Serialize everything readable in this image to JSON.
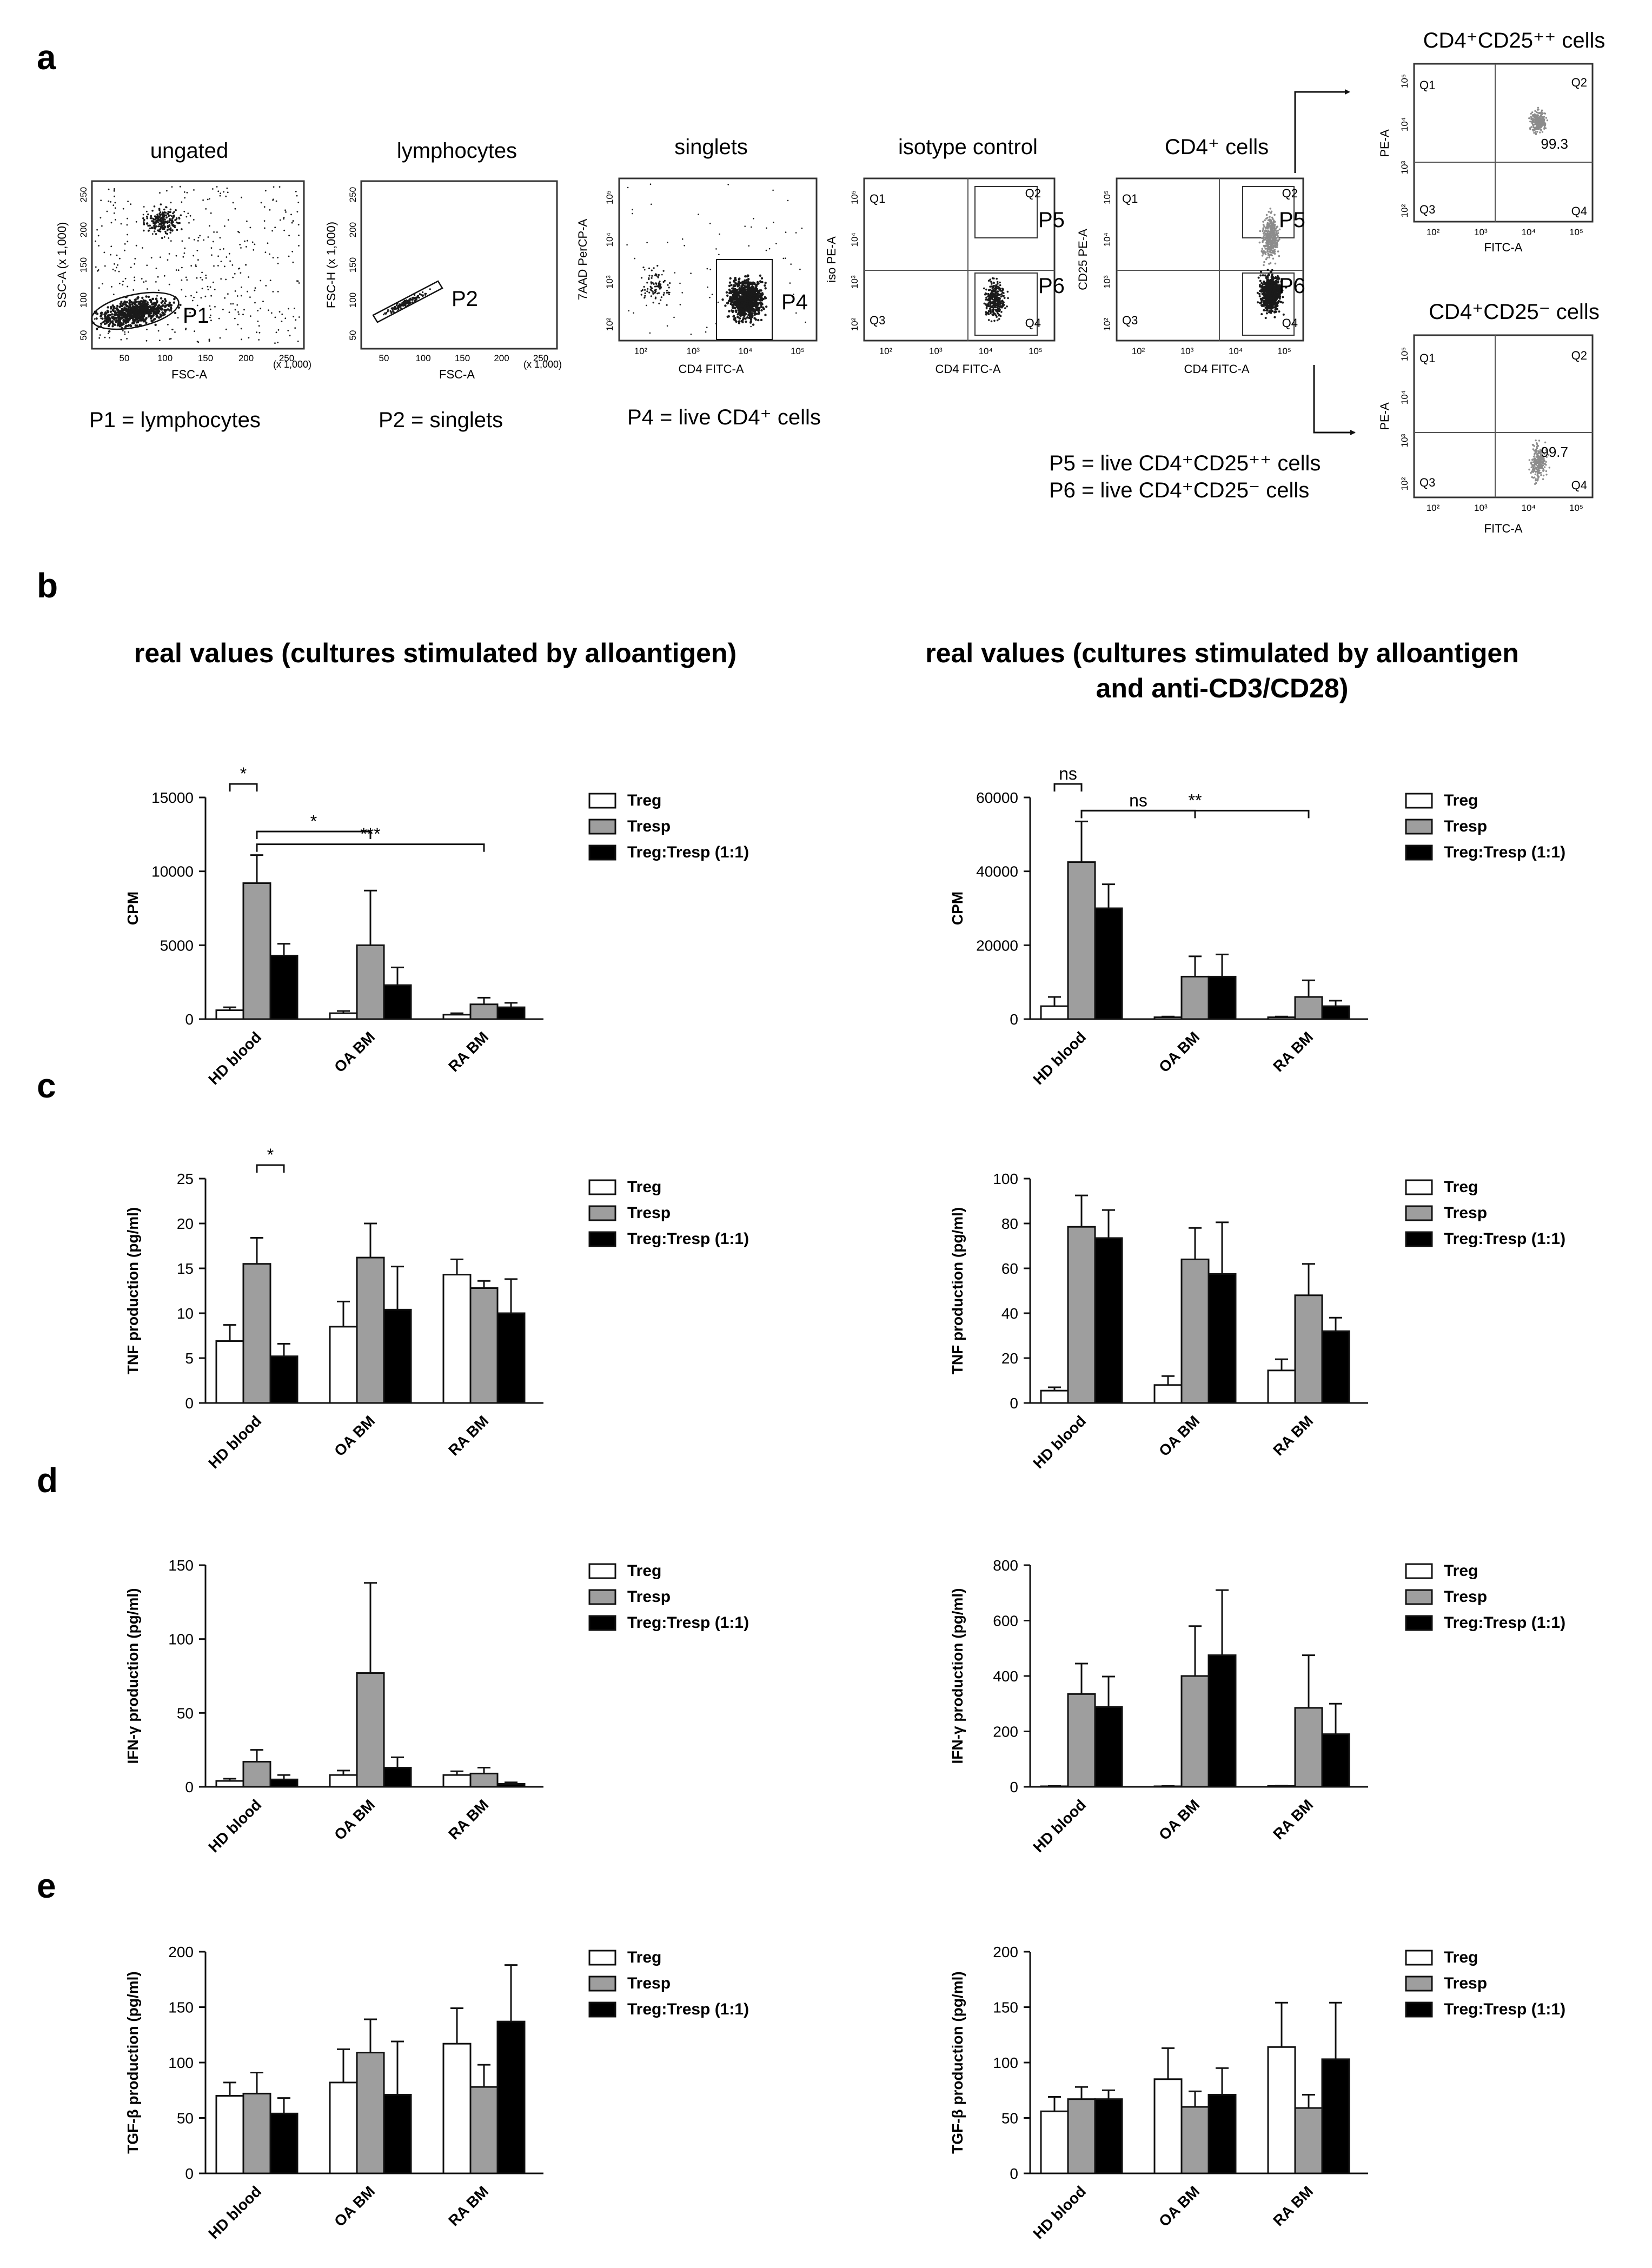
{
  "panel_letters": {
    "a": "a",
    "b": "b",
    "c": "c",
    "d": "d",
    "e": "e"
  },
  "flow": {
    "plot_titles": [
      "ungated",
      "lymphocytes",
      "singlets",
      "isotype control",
      "CD4⁺ cells"
    ],
    "right_titles": {
      "top": "CD4⁺CD25⁺⁺ cells",
      "bottom": "CD4⁺CD25⁻ cells"
    },
    "xlabels": [
      "FSC-A",
      "FSC-A",
      "CD4 FITC-A",
      "CD4 FITC-A",
      "CD4 FITC-A",
      "FITC-A",
      "FITC-A"
    ],
    "ylabels": [
      "SSC-A (x 1,000)",
      "FSC-H (x 1,000)",
      "7AAD PerCP-A",
      "iso PE-A",
      "CD25 PE-A",
      "PE-A",
      "PE-A"
    ],
    "lin_unit": "(x 1,000)",
    "lin_ticks": [
      "50",
      "100",
      "150",
      "200",
      "250"
    ],
    "log_ticks": [
      "10²",
      "10³",
      "10⁴",
      "10⁵"
    ],
    "gates": {
      "p1": "P1",
      "p2": "P2",
      "p4": "P4",
      "p5": "P5",
      "p6": "P6"
    },
    "quadrants": [
      "Q1",
      "Q2",
      "Q3",
      "Q4"
    ],
    "values": {
      "cd25pp": "99.3",
      "cd25m": "99.7"
    },
    "captions": {
      "c1": "P1 = lymphocytes",
      "c2": "P2 = singlets",
      "c3": "P4 = live CD4⁺ cells"
    },
    "defs": {
      "d1": "P5 = live CD4⁺CD25⁺⁺ cells",
      "d2": "P6 = live CD4⁺CD25⁻   cells"
    }
  },
  "col_titles": {
    "left": "real values (cultures stimulated by alloantigen)",
    "right_line1": "real values (cultures stimulated by alloantigen",
    "right_line2": "and anti-CD3/CD28)"
  },
  "legend": [
    "Treg",
    "Tresp",
    "Treg:Tresp (1:1)"
  ],
  "colors": {
    "Treg": "#ffffff",
    "Tresp": "#9e9e9e",
    "Treg:Tresp (1:1)": "#000000",
    "flow_dots": "#1a1a1a",
    "flow_gray": "#8c8c8c"
  },
  "chart_data": [
    {
      "id": "b_left",
      "type": "bar",
      "title": "real values (cultures stimulated by alloantigen)",
      "xlabel": "",
      "ylabel": "CPM",
      "categories": [
        "HD blood",
        "OA BM",
        "RA BM"
      ],
      "ylim": [
        0,
        15000
      ],
      "yticks": [
        "0",
        "5000",
        "10000",
        "15000"
      ],
      "series": [
        {
          "name": "Treg",
          "values": [
            600,
            400,
            300
          ],
          "err": [
            200,
            150,
            100
          ]
        },
        {
          "name": "Tresp",
          "values": [
            9200,
            5000,
            1000
          ],
          "err": [
            1900,
            3700,
            450
          ]
        },
        {
          "name": "Treg:Tresp (1:1)",
          "values": [
            4300,
            2300,
            800
          ],
          "err": [
            800,
            1200,
            300
          ]
        }
      ],
      "sig": [
        {
          "from": [
            0,
            0
          ],
          "to": [
            0,
            1
          ],
          "label": "*"
        },
        {
          "from": [
            0,
            1
          ],
          "to": [
            1,
            1
          ],
          "label": "*"
        },
        {
          "from": [
            0,
            1
          ],
          "to": [
            2,
            1
          ],
          "label": "***"
        }
      ]
    },
    {
      "id": "b_right",
      "type": "bar",
      "title": "real values (cultures stimulated by alloantigen and anti-CD3/CD28)",
      "xlabel": "",
      "ylabel": "CPM",
      "categories": [
        "HD blood",
        "OA BM",
        "RA BM"
      ],
      "ylim": [
        0,
        60000
      ],
      "yticks": [
        "0",
        "20000",
        "40000",
        "60000"
      ],
      "series": [
        {
          "name": "Treg",
          "values": [
            3500,
            500,
            500
          ],
          "err": [
            2500,
            200,
            200
          ]
        },
        {
          "name": "Tresp",
          "values": [
            42500,
            11500,
            6000
          ],
          "err": [
            11000,
            5500,
            4500
          ]
        },
        {
          "name": "Treg:Tresp (1:1)",
          "values": [
            30000,
            11500,
            3500
          ],
          "err": [
            6500,
            6000,
            1500
          ]
        }
      ],
      "sig": [
        {
          "from": [
            0,
            0
          ],
          "to": [
            0,
            1
          ],
          "label": "ns"
        },
        {
          "from": [
            0,
            1
          ],
          "to": [
            1,
            1
          ],
          "label": "ns"
        },
        {
          "from": [
            0,
            1
          ],
          "to": [
            2,
            1
          ],
          "label": "**"
        }
      ]
    },
    {
      "id": "c_left",
      "type": "bar",
      "xlabel": "",
      "ylabel": "TNF production (pg/ml)",
      "categories": [
        "HD blood",
        "OA BM",
        "RA BM"
      ],
      "ylim": [
        0,
        25
      ],
      "yticks": [
        "0",
        "5",
        "10",
        "15",
        "20",
        "25"
      ],
      "series": [
        {
          "name": "Treg",
          "values": [
            6.9,
            8.5,
            14.3
          ],
          "err": [
            1.8,
            2.8,
            1.7
          ]
        },
        {
          "name": "Tresp",
          "values": [
            15.5,
            16.2,
            12.8
          ],
          "err": [
            2.9,
            3.8,
            0.8
          ]
        },
        {
          "name": "Treg:Tresp (1:1)",
          "values": [
            5.2,
            10.4,
            10.0
          ],
          "err": [
            1.4,
            4.8,
            3.8
          ]
        }
      ],
      "sig": [
        {
          "from": [
            0,
            1
          ],
          "to": [
            0,
            2
          ],
          "label": "*"
        }
      ]
    },
    {
      "id": "c_right",
      "type": "bar",
      "xlabel": "",
      "ylabel": "TNF production (pg/ml)",
      "categories": [
        "HD blood",
        "OA BM",
        "RA BM"
      ],
      "ylim": [
        0,
        100
      ],
      "yticks": [
        "0",
        "20",
        "40",
        "60",
        "80",
        "100"
      ],
      "series": [
        {
          "name": "Treg",
          "values": [
            5.5,
            8.0,
            14.5
          ],
          "err": [
            1.5,
            4.0,
            5.0
          ]
        },
        {
          "name": "Tresp",
          "values": [
            78.5,
            64.0,
            48.0
          ],
          "err": [
            14.0,
            14.0,
            14.0
          ]
        },
        {
          "name": "Treg:Tresp (1:1)",
          "values": [
            73.5,
            57.5,
            32.0
          ],
          "err": [
            12.5,
            23.0,
            6.0
          ]
        }
      ],
      "sig": []
    },
    {
      "id": "d_left",
      "type": "bar",
      "xlabel": "",
      "ylabel": "IFN-γ production (pg/ml)",
      "categories": [
        "HD blood",
        "OA BM",
        "RA BM"
      ],
      "ylim": [
        0,
        150
      ],
      "yticks": [
        "0",
        "50",
        "100",
        "150"
      ],
      "series": [
        {
          "name": "Treg",
          "values": [
            4,
            8,
            8
          ],
          "err": [
            1.5,
            3,
            2.5
          ]
        },
        {
          "name": "Tresp",
          "values": [
            17,
            77,
            9
          ],
          "err": [
            8,
            61,
            4
          ]
        },
        {
          "name": "Treg:Tresp (1:1)",
          "values": [
            5,
            13,
            2
          ],
          "err": [
            3,
            7,
            1
          ]
        }
      ],
      "sig": []
    },
    {
      "id": "d_right",
      "type": "bar",
      "xlabel": "",
      "ylabel": "IFN-γ production (pg/ml)",
      "categories": [
        "HD blood",
        "OA BM",
        "RA BM"
      ],
      "ylim": [
        0,
        800
      ],
      "yticks": [
        "0",
        "200",
        "400",
        "600",
        "800"
      ],
      "series": [
        {
          "name": "Treg",
          "values": [
            2,
            2,
            3
          ],
          "err": [
            1,
            1,
            1
          ]
        },
        {
          "name": "Tresp",
          "values": [
            335,
            400,
            285
          ],
          "err": [
            110,
            180,
            190
          ]
        },
        {
          "name": "Treg:Tresp (1:1)",
          "values": [
            288,
            475,
            190
          ],
          "err": [
            110,
            235,
            110
          ]
        }
      ],
      "sig": []
    },
    {
      "id": "e_left",
      "type": "bar",
      "xlabel": "",
      "ylabel": "TGF-β production (pg/ml)",
      "categories": [
        "HD blood",
        "OA BM",
        "RA BM"
      ],
      "ylim": [
        0,
        200
      ],
      "yticks": [
        "0",
        "50",
        "100",
        "150",
        "200"
      ],
      "series": [
        {
          "name": "Treg",
          "values": [
            70,
            82,
            117
          ],
          "err": [
            12,
            30,
            32
          ]
        },
        {
          "name": "Tresp",
          "values": [
            72,
            109,
            78
          ],
          "err": [
            19,
            30,
            20
          ]
        },
        {
          "name": "Treg:Tresp (1:1)",
          "values": [
            54,
            71,
            137
          ],
          "err": [
            14,
            48,
            51
          ]
        }
      ],
      "sig": []
    },
    {
      "id": "e_right",
      "type": "bar",
      "xlabel": "",
      "ylabel": "TGF-β production (pg/ml)",
      "categories": [
        "HD blood",
        "OA BM",
        "RA BM"
      ],
      "ylim": [
        0,
        200
      ],
      "yticks": [
        "0",
        "50",
        "100",
        "150",
        "200"
      ],
      "series": [
        {
          "name": "Treg",
          "values": [
            56,
            85,
            114
          ],
          "err": [
            13,
            28,
            40
          ]
        },
        {
          "name": "Tresp",
          "values": [
            67,
            60,
            59
          ],
          "err": [
            11,
            14,
            12
          ]
        },
        {
          "name": "Treg:Tresp (1:1)",
          "values": [
            67,
            71,
            103
          ],
          "err": [
            8,
            24,
            51
          ]
        }
      ],
      "sig": []
    }
  ]
}
